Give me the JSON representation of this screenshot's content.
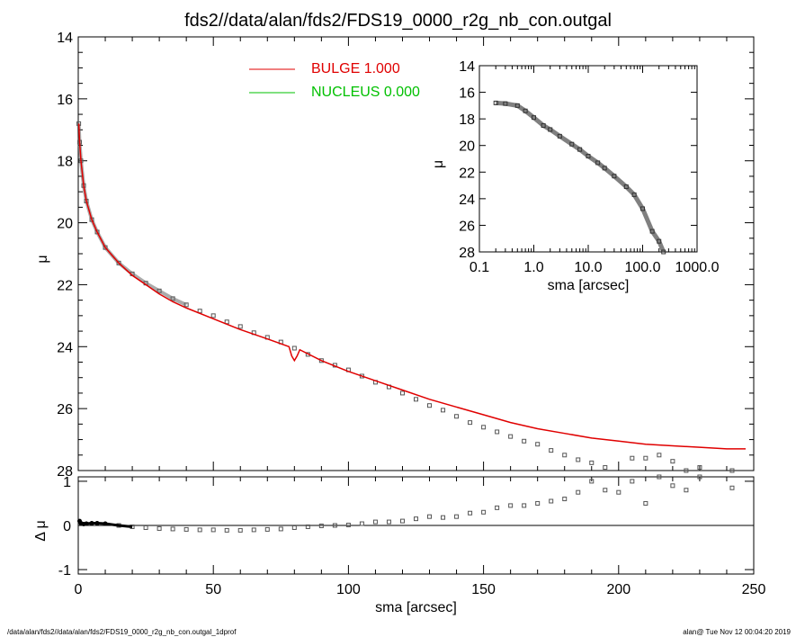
{
  "title": "fds2//data/alan/fds2/FDS19_0000_r2g_nb_con.outgal",
  "footer": {
    "left": "/data/alan/fds2//data/alan/fds2/FDS19_0000_r2g_nb_con.outgal_1dprof",
    "right": "alan@  Tue Nov 12 00:04:20 2019"
  },
  "colors": {
    "bulge": "#e00000",
    "nucleus": "#00c000",
    "data": "#555555"
  },
  "chart_data": [
    {
      "id": "main-profile",
      "type": "line",
      "xlabel": "",
      "ylabel": "μ",
      "xlim": [
        0,
        250
      ],
      "ylim": [
        28,
        14
      ],
      "y_inverted": true,
      "yticks": [
        14,
        16,
        18,
        20,
        22,
        24,
        26,
        28
      ],
      "legend": [
        {
          "name": "BULGE",
          "value": "1.000",
          "color": "#e00000"
        },
        {
          "name": "NUCLEUS",
          "value": "0.000",
          "color": "#00c000"
        }
      ],
      "series": [
        {
          "name": "BULGE",
          "kind": "line",
          "color": "#e00000",
          "x": [
            0.2,
            0.5,
            1,
            2,
            3,
            5,
            7,
            10,
            15,
            20,
            25,
            30,
            35,
            40,
            50,
            60,
            70,
            78,
            79,
            80,
            81,
            82,
            90,
            100,
            110,
            120,
            130,
            140,
            150,
            160,
            170,
            180,
            190,
            200,
            210,
            220,
            230,
            240,
            247
          ],
          "y": [
            16.8,
            17.4,
            18.0,
            18.8,
            19.3,
            19.9,
            20.3,
            20.8,
            21.3,
            21.7,
            22.0,
            22.3,
            22.55,
            22.75,
            23.1,
            23.45,
            23.75,
            24.0,
            24.3,
            24.45,
            24.3,
            24.1,
            24.45,
            24.8,
            25.1,
            25.4,
            25.7,
            25.95,
            26.2,
            26.45,
            26.65,
            26.8,
            26.95,
            27.05,
            27.15,
            27.2,
            27.25,
            27.3,
            27.3
          ]
        },
        {
          "name": "data",
          "kind": "points",
          "color": "#555555",
          "x": [
            0.2,
            0.5,
            1,
            2,
            3,
            5,
            7,
            10,
            15,
            20,
            25,
            30,
            35,
            40,
            45,
            50,
            55,
            60,
            65,
            70,
            75,
            80,
            85,
            90,
            95,
            100,
            105,
            110,
            115,
            120,
            125,
            130,
            135,
            140,
            145,
            150,
            155,
            160,
            165,
            170,
            175,
            180,
            185,
            190,
            195,
            200,
            205,
            210,
            215,
            220,
            225,
            230,
            242
          ],
          "y": [
            16.8,
            17.4,
            18.0,
            18.8,
            19.3,
            19.9,
            20.3,
            20.8,
            21.3,
            21.65,
            21.95,
            22.2,
            22.45,
            22.65,
            22.85,
            23.0,
            23.2,
            23.35,
            23.55,
            23.7,
            23.85,
            24.05,
            24.25,
            24.45,
            24.6,
            24.75,
            24.95,
            25.15,
            25.3,
            25.5,
            25.7,
            25.9,
            26.05,
            26.25,
            26.45,
            26.6,
            26.75,
            26.9,
            27.05,
            27.15,
            27.35,
            27.5,
            27.65,
            27.75,
            27.9,
            28.1,
            27.6,
            27.6,
            27.5,
            27.7,
            28.0,
            27.9,
            28.0
          ]
        }
      ]
    },
    {
      "id": "residual",
      "type": "scatter",
      "xlabel": "sma [arcsec]",
      "ylabel": "Δ μ",
      "xlim": [
        0,
        250
      ],
      "ylim": [
        -1.1,
        1.1
      ],
      "yticks": [
        -1,
        0,
        1
      ],
      "xticks": [
        0,
        50,
        100,
        150,
        200,
        250
      ],
      "x": [
        0.5,
        1,
        2,
        3,
        5,
        7,
        10,
        15,
        20,
        25,
        30,
        35,
        40,
        45,
        50,
        55,
        60,
        65,
        70,
        75,
        80,
        85,
        90,
        95,
        100,
        105,
        110,
        115,
        120,
        125,
        130,
        135,
        140,
        145,
        150,
        155,
        160,
        165,
        170,
        175,
        180,
        185,
        190,
        195,
        200,
        205,
        210,
        215,
        220,
        225,
        230,
        242
      ],
      "y": [
        0.1,
        0.05,
        0.03,
        0.04,
        0.05,
        0.05,
        0.04,
        0.0,
        -0.03,
        -0.05,
        -0.07,
        -0.08,
        -0.09,
        -0.1,
        -0.1,
        -0.11,
        -0.11,
        -0.1,
        -0.09,
        -0.08,
        -0.05,
        -0.03,
        -0.01,
        0.0,
        0.01,
        0.04,
        0.08,
        0.08,
        0.1,
        0.15,
        0.2,
        0.18,
        0.2,
        0.28,
        0.3,
        0.4,
        0.45,
        0.45,
        0.5,
        0.55,
        0.6,
        0.75,
        1.0,
        0.8,
        0.75,
        1.0,
        0.5,
        1.1,
        0.9,
        0.8,
        1.1,
        0.85
      ]
    },
    {
      "id": "inset-log",
      "type": "scatter",
      "xlabel": "sma [arcsec]",
      "ylabel": "μ",
      "xscale": "log",
      "xlim": [
        0.1,
        1000
      ],
      "ylim": [
        28,
        14
      ],
      "y_inverted": true,
      "xticks": [
        "0.1",
        "1.0",
        "10.0",
        "100.0",
        "1000.0"
      ],
      "yticks": [
        14,
        16,
        18,
        20,
        22,
        24,
        26,
        28
      ],
      "x": [
        0.2,
        0.3,
        0.5,
        0.7,
        1,
        1.5,
        2,
        3,
        5,
        7,
        10,
        15,
        20,
        30,
        50,
        70,
        100,
        150,
        200,
        242
      ],
      "y": [
        16.8,
        16.85,
        17.0,
        17.4,
        17.9,
        18.5,
        18.8,
        19.3,
        19.9,
        20.3,
        20.8,
        21.3,
        21.7,
        22.3,
        23.1,
        23.7,
        24.75,
        26.45,
        27.2,
        28.0
      ]
    }
  ]
}
